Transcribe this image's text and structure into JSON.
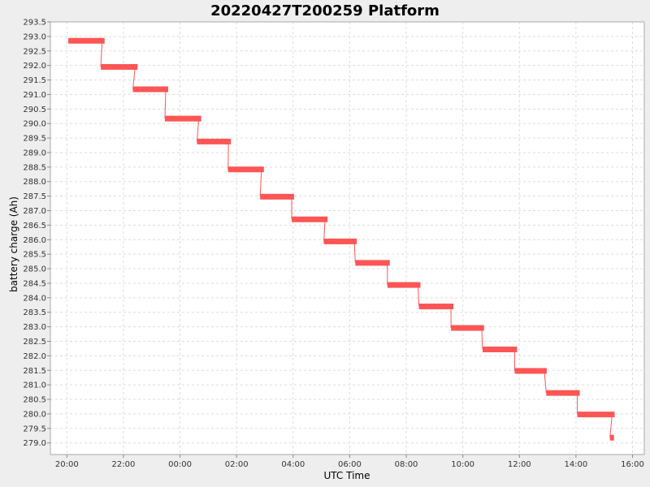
{
  "chart_data": {
    "type": "line",
    "title": "20220427T200259 Platform",
    "xlabel": "UTC Time",
    "ylabel": "battery charge (Ah)",
    "x_ticks": [
      "20:00",
      "22:00",
      "00:00",
      "02:00",
      "04:00",
      "06:00",
      "08:00",
      "10:00",
      "12:00",
      "14:00",
      "16:00"
    ],
    "xlim": [
      "2022-04-27T19:25",
      "2022-04-28T16:25"
    ],
    "ylim": [
      278.6,
      293.5
    ],
    "y_tick_start": 279.0,
    "y_tick_end": 293.5,
    "y_tick_step": 0.5,
    "grid": true,
    "series_color": "#ff5555",
    "segments": [
      {
        "start": "2022-04-27T20:03",
        "end": "2022-04-27T21:20",
        "value": 292.85
      },
      {
        "start": "2022-04-27T21:12",
        "end": "2022-04-27T22:30",
        "value": 291.95
      },
      {
        "start": "2022-04-27T22:20",
        "end": "2022-04-27T23:35",
        "value": 291.18
      },
      {
        "start": "2022-04-27T23:28",
        "end": "2022-04-28T00:45",
        "value": 290.17
      },
      {
        "start": "2022-04-28T00:36",
        "end": "2022-04-28T01:48",
        "value": 289.38
      },
      {
        "start": "2022-04-28T01:42",
        "end": "2022-04-28T02:58",
        "value": 288.42
      },
      {
        "start": "2022-04-28T02:50",
        "end": "2022-04-28T04:02",
        "value": 287.48
      },
      {
        "start": "2022-04-28T03:57",
        "end": "2022-04-28T05:13",
        "value": 286.7
      },
      {
        "start": "2022-04-28T05:05",
        "end": "2022-04-28T06:15",
        "value": 285.94
      },
      {
        "start": "2022-04-28T06:12",
        "end": "2022-04-28T07:25",
        "value": 285.2
      },
      {
        "start": "2022-04-28T07:20",
        "end": "2022-04-28T08:30",
        "value": 284.44
      },
      {
        "start": "2022-04-28T08:27",
        "end": "2022-04-28T09:40",
        "value": 283.7
      },
      {
        "start": "2022-04-28T09:35",
        "end": "2022-04-28T10:45",
        "value": 282.96
      },
      {
        "start": "2022-04-28T10:42",
        "end": "2022-04-28T11:55",
        "value": 282.22
      },
      {
        "start": "2022-04-28T11:50",
        "end": "2022-04-28T12:58",
        "value": 281.48
      },
      {
        "start": "2022-04-28T12:57",
        "end": "2022-04-28T14:08",
        "value": 280.72
      },
      {
        "start": "2022-04-28T14:03",
        "end": "2022-04-28T15:22",
        "value": 279.98
      },
      {
        "start": "2022-04-28T15:12",
        "end": "2022-04-28T15:16",
        "value": 279.18
      }
    ]
  }
}
